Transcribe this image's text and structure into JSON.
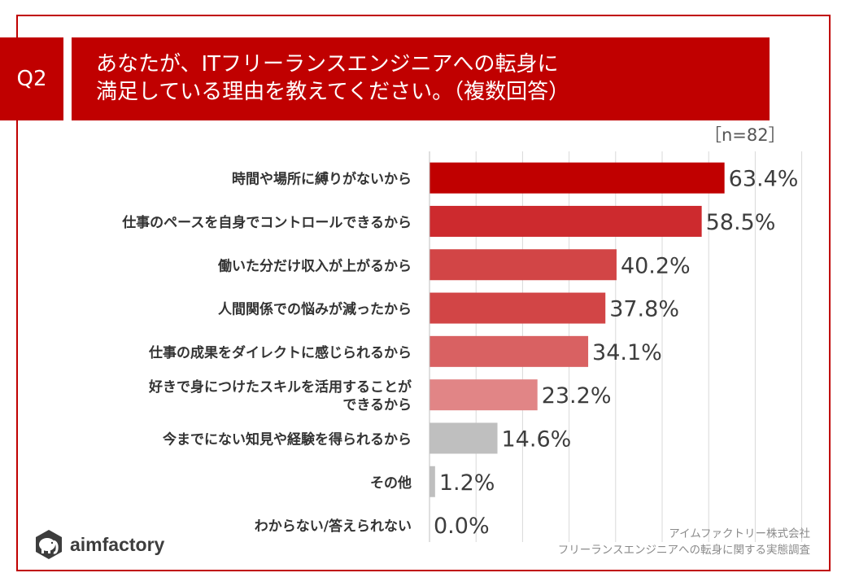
{
  "header": {
    "badge": "Q2",
    "title_line1": "あなたが、ITフリーランスエンジニアへの転身に",
    "title_line2": "満足している理由を教えてください。（複数回答）",
    "sample_size": "［n=82］"
  },
  "chart_data": {
    "type": "bar",
    "orientation": "horizontal",
    "title": "あなたが、ITフリーランスエンジニアへの転身に満足している理由を教えてください。（複数回答）",
    "unit": "%",
    "xlim": [
      0,
      100
    ],
    "grid": true,
    "categories": [
      [
        "時間や場所に縛りがないから"
      ],
      [
        "仕事のペースを自身でコントロールできるから"
      ],
      [
        "働いた分だけ収入が上がるから"
      ],
      [
        "人間関係での悩みが減ったから"
      ],
      [
        "仕事の成果をダイレクトに感じられるから"
      ],
      [
        "好きで身につけたスキルを活用することが",
        "できるから"
      ],
      [
        "今までにない知見や経験を得られるから"
      ],
      [
        "その他"
      ],
      [
        "わからない/答えられない"
      ]
    ],
    "values": [
      63.4,
      58.5,
      40.2,
      37.8,
      34.1,
      23.2,
      14.6,
      1.2,
      0.0
    ],
    "value_labels": [
      "63.4%",
      "58.5%",
      "40.2%",
      "37.8%",
      "34.1%",
      "23.2%",
      "14.6%",
      "1.2%",
      "0.0%"
    ],
    "bar_colors": [
      "#c00000",
      "#cd2a2e",
      "#d24546",
      "#d24546",
      "#d96162",
      "#e18586",
      "#bfbfbf",
      "#bfbfbf",
      "#bfbfbf"
    ]
  },
  "branding": {
    "logo_text": "aimfactory",
    "logo_icon": "elephant-icon",
    "company": "アイムファクトリー株式会社",
    "survey": "フリーランスエンジニアへの転身に関する実態調査"
  },
  "colors": {
    "accent": "#c00000",
    "grid": "#d9d9d9"
  }
}
